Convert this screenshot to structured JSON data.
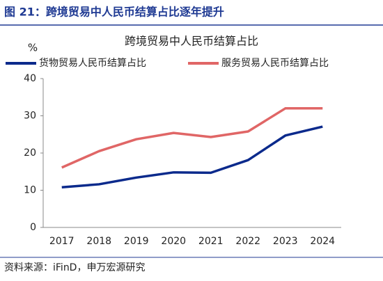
{
  "header": {
    "title": "图 21：跨境贸易中人民币结算占比逐年提升"
  },
  "source": "资料来源：iFinD，申万宏源研究",
  "chart_data": {
    "type": "line",
    "title": "跨境贸易中人民币结算占比",
    "y_label": "%",
    "categories": [
      "2017",
      "2018",
      "2019",
      "2020",
      "2021",
      "2022",
      "2023",
      "2024"
    ],
    "series": [
      {
        "name": "货物贸易人民币结算占比",
        "color": "#0b2a8c",
        "values": [
          10.8,
          11.6,
          13.4,
          14.8,
          14.7,
          18.1,
          24.7,
          27.1
        ]
      },
      {
        "name": "服务贸易人民币结算占比",
        "color": "#e06666",
        "values": [
          16.1,
          20.5,
          23.7,
          25.4,
          24.3,
          25.8,
          32.0,
          32.0
        ]
      }
    ],
    "ylim": [
      0,
      40
    ],
    "yticks": [
      0,
      10,
      20,
      30,
      40
    ],
    "grid": false,
    "legend": "top"
  }
}
